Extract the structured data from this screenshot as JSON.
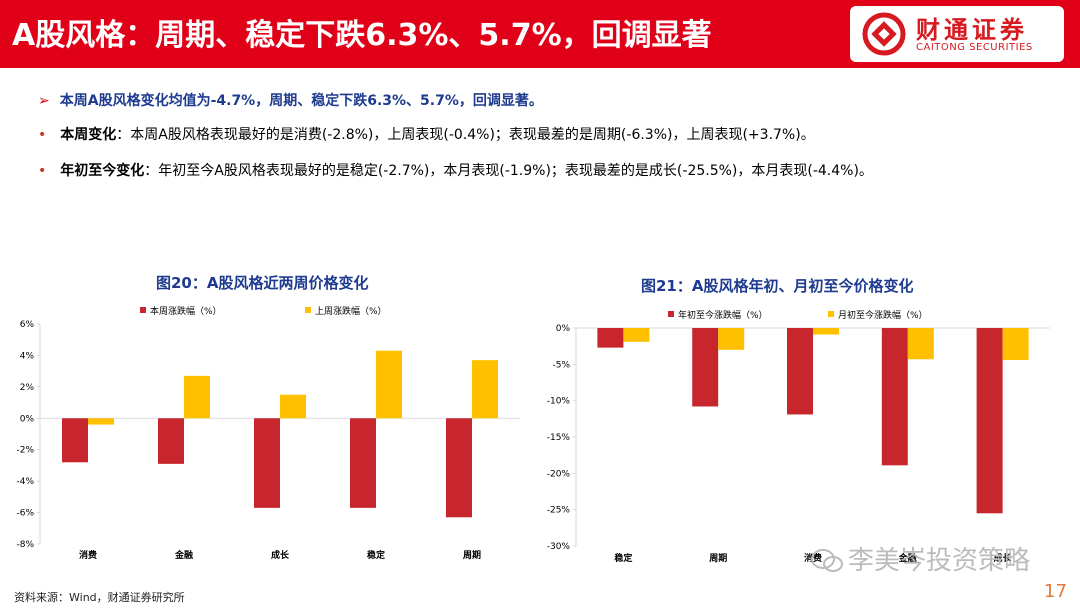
{
  "header": {
    "title": "A股风格：周期、稳定下跌6.3%、5.7%，回调显著",
    "logo_cn": "财通证券",
    "logo_en": "CAITONG SECURITIES",
    "bg_color": "#e00017"
  },
  "summary": {
    "headline_arrow": "➢",
    "headline": "本周A股风格变化均值为-4.7%，周期、稳定下跌6.3%、5.7%，回调显著。",
    "bullet_marker": "•",
    "bullets": [
      {
        "label": "本周变化",
        "text": "：本周A股风格表现最好的是消费(-2.8%)，上周表现(-0.4%)；表现最差的是周期(-6.3%)，上周表现(+3.7%)。"
      },
      {
        "label": "年初至今变化",
        "text": "：年初至今A股风格表现最好的是稳定(-2.7%)，本月表现(-1.9%)；表现最差的是成长(-25.5%)，本月表现(-4.4%)。"
      }
    ]
  },
  "chart_data": [
    {
      "type": "bar",
      "title": "图20：A股风格近两周价格变化",
      "categories": [
        "消费",
        "金融",
        "成长",
        "稳定",
        "周期"
      ],
      "series": [
        {
          "name": "本周涨跌幅（%）",
          "color": "#c8262d",
          "values": [
            -2.8,
            -2.9,
            -5.7,
            -5.7,
            -6.3
          ]
        },
        {
          "name": "上周涨跌幅（%）",
          "color": "#ffc000",
          "values": [
            -0.4,
            2.7,
            1.5,
            4.3,
            3.7
          ]
        }
      ],
      "yticks": [
        6,
        4,
        2,
        0,
        -2,
        -4,
        -6,
        -8
      ],
      "ytick_labels": [
        "6%",
        "4%",
        "2%",
        "0%",
        "-2%",
        "-4%",
        "-6%",
        "-8%"
      ],
      "ylim": [
        -8,
        6
      ],
      "legend_position": "top"
    },
    {
      "type": "bar",
      "title": "图21：A股风格年初、月初至今价格变化",
      "categories": [
        "稳定",
        "周期",
        "消费",
        "金融",
        "成长"
      ],
      "series": [
        {
          "name": "年初至今涨跌幅（%）",
          "color": "#c8262d",
          "values": [
            -2.7,
            -10.8,
            -11.9,
            -18.9,
            -25.5
          ]
        },
        {
          "name": "月初至今涨跌幅（%）",
          "color": "#ffc000",
          "values": [
            -1.9,
            -3.0,
            -0.9,
            -4.3,
            -4.4
          ]
        }
      ],
      "yticks": [
        0,
        -5,
        -10,
        -15,
        -20,
        -25,
        -30
      ],
      "ytick_labels": [
        "0%",
        "-5%",
        "-10%",
        "-15%",
        "-20%",
        "-25%",
        "-30%"
      ],
      "ylim": [
        -30,
        0
      ],
      "legend_position": "top"
    }
  ],
  "footer": {
    "source": "资料来源：Wind，财通证券研究所",
    "page_number": "17",
    "watermark": "李美岑投资策略"
  }
}
